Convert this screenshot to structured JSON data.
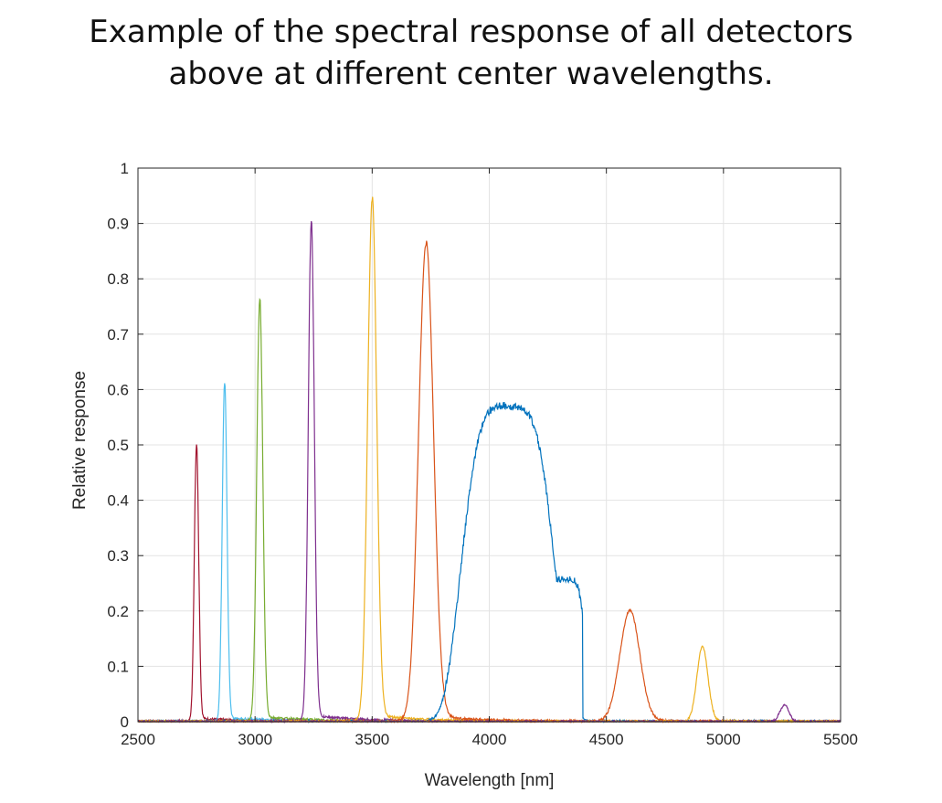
{
  "header": {
    "title_line1": "Example of the spectral response of all detectors",
    "title_line2": "above at different center wavelengths."
  },
  "chart_data": {
    "type": "line",
    "title": "",
    "xlabel": "Wavelength [nm]",
    "ylabel": "Relative response",
    "xlim": [
      2500,
      5500
    ],
    "ylim": [
      0,
      1
    ],
    "grid": true,
    "legend": false,
    "x_ticks": [
      "2500",
      "3000",
      "3500",
      "4000",
      "4500",
      "5000",
      "5500"
    ],
    "y_ticks": [
      "0",
      "0.1",
      "0.2",
      "0.3",
      "0.4",
      "0.5",
      "0.6",
      "0.7",
      "0.8",
      "0.9",
      "1"
    ],
    "series": [
      {
        "color": "#A2142F",
        "peak_x": 2750,
        "peak_y": 0.5,
        "fwhm": 22
      },
      {
        "color": "#4DBEEE",
        "peak_x": 2870,
        "peak_y": 0.61,
        "fwhm": 24
      },
      {
        "color": "#77AC30",
        "peak_x": 3020,
        "peak_y": 0.76,
        "fwhm": 30
      },
      {
        "color": "#7E2F8E",
        "peak_x": 3240,
        "peak_y": 0.9,
        "fwhm": 30
      },
      {
        "color": "#EDB120",
        "peak_x": 3500,
        "peak_y": 0.94,
        "fwhm": 45
      },
      {
        "color": "#D95319",
        "peak_x": 3730,
        "peak_y": 0.86,
        "fwhm": 75
      },
      {
        "color": "#0072BD",
        "peak_x": 4080,
        "peak_y": 0.57,
        "fwhm": 400
      },
      {
        "color": "#D95319",
        "peak_x": 4600,
        "peak_y": 0.2,
        "fwhm": 100
      },
      {
        "color": "#EDB120",
        "peak_x": 4910,
        "peak_y": 0.135,
        "fwhm": 55
      },
      {
        "color": "#7E2F8E",
        "peak_x": 5260,
        "peak_y": 0.03,
        "fwhm": 45
      }
    ]
  }
}
